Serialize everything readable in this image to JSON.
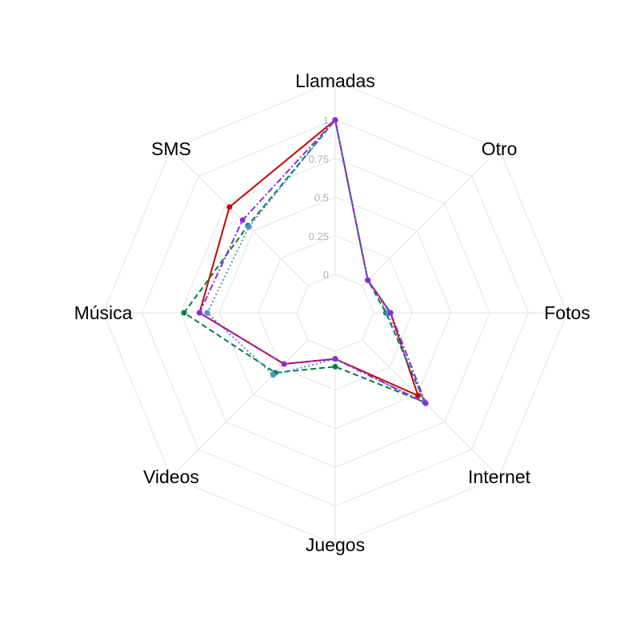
{
  "chart_data": {
    "type": "radar",
    "categories": [
      "Llamadas",
      "Otro",
      "Fotos",
      "Internet",
      "Juegos",
      "Videos",
      "Música",
      "SMS"
    ],
    "radial_ticks": [
      "0",
      "0.25",
      "0.5",
      "0.75",
      "1"
    ],
    "range": [
      0,
      1
    ],
    "grid": true,
    "legend": "none",
    "series": [
      {
        "color": "#cc0000",
        "dash": "solid",
        "values": [
          1.0,
          0.05,
          0.11,
          0.51,
          0.05,
          0.22,
          0.63,
          0.72
        ]
      },
      {
        "color": "#008040",
        "dash": "dashed",
        "values": [
          1.0,
          0.05,
          0.08,
          0.57,
          0.1,
          0.3,
          0.73,
          0.55
        ]
      },
      {
        "color": "#4a90d9",
        "dash": "dotted",
        "values": [
          1.0,
          0.05,
          0.09,
          0.57,
          0.05,
          0.32,
          0.58,
          0.54
        ]
      },
      {
        "color": "#8a2be2",
        "dash": "dashdot",
        "values": [
          1.0,
          0.05,
          0.11,
          0.58,
          0.05,
          0.22,
          0.63,
          0.6
        ]
      }
    ]
  }
}
